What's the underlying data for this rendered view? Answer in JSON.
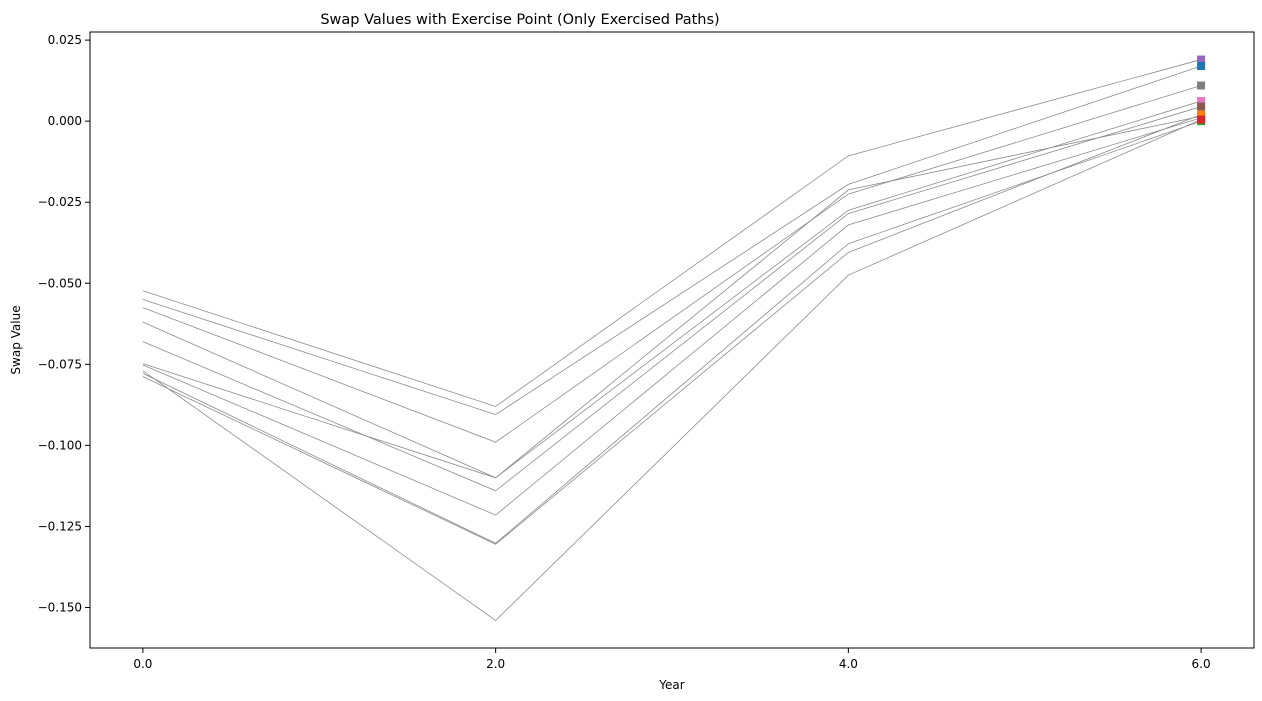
{
  "chart_data": {
    "type": "line",
    "title": "Swap Values with Exercise Point (Only Exercised Paths)",
    "xlabel": "Year",
    "ylabel": "Swap Value",
    "x": [
      0.0,
      2.0,
      4.0,
      6.0
    ],
    "x_tick_labels": [
      "0.0",
      "2.0",
      "4.0",
      "6.0"
    ],
    "y_ticks": [
      0.025,
      0.0,
      -0.025,
      -0.05,
      -0.075,
      -0.1,
      -0.125,
      -0.15
    ],
    "y_tick_labels": [
      "0.025",
      "0.000",
      "−0.025",
      "−0.050",
      "−0.075",
      "−0.100",
      "−0.125",
      "−0.150"
    ],
    "xlim": [
      -0.3,
      6.3
    ],
    "ylim": [
      -0.1625,
      0.0275
    ],
    "line_color": "#8c8c8c",
    "grid": false,
    "legend": "none",
    "series": [
      {
        "values": [
          -0.0523,
          -0.088,
          -0.0107,
          0.019
        ],
        "marker_color": "#9467bd"
      },
      {
        "values": [
          -0.055,
          -0.0905,
          -0.0195,
          0.017
        ],
        "marker_color": "#1f77b4"
      },
      {
        "values": [
          -0.0575,
          -0.099,
          -0.0225,
          0.011
        ],
        "marker_color": "#7f7f7f"
      },
      {
        "values": [
          -0.062,
          -0.11,
          -0.0275,
          0.0062
        ],
        "marker_color": "#e377c2"
      },
      {
        "values": [
          -0.068,
          -0.114,
          -0.0285,
          0.0045
        ],
        "marker_color": "#8c564b"
      },
      {
        "values": [
          -0.0748,
          -0.11,
          -0.0212,
          0.0015
        ],
        "marker_color": "#17becf"
      },
      {
        "values": [
          -0.0752,
          -0.1215,
          -0.032,
          0.001
        ],
        "marker_color": "#bcbd22"
      },
      {
        "values": [
          -0.0778,
          -0.1302,
          -0.0378,
          0.0
        ],
        "marker_color": "#2ca02c"
      },
      {
        "values": [
          -0.0788,
          -0.1305,
          -0.0405,
          0.002
        ],
        "marker_color": "#ff7f0e"
      },
      {
        "values": [
          -0.077,
          -0.154,
          -0.0475,
          0.0005
        ],
        "marker_color": "#d62728"
      }
    ]
  }
}
